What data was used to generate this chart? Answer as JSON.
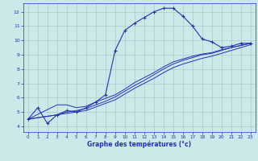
{
  "xlabel": "Graphe des températures (°c)",
  "background_color": "#cce8e8",
  "grid_color": "#aacccc",
  "line_color": "#2233bb",
  "xlim": [
    -0.5,
    23.5
  ],
  "ylim": [
    3.6,
    12.6
  ],
  "xticks": [
    0,
    1,
    2,
    3,
    4,
    5,
    6,
    7,
    8,
    9,
    10,
    11,
    12,
    13,
    14,
    15,
    16,
    17,
    18,
    19,
    20,
    21,
    22,
    23
  ],
  "yticks": [
    4,
    5,
    6,
    7,
    8,
    9,
    10,
    11,
    12
  ],
  "curve1_x": [
    0,
    1,
    2,
    3,
    4,
    5,
    6,
    7,
    8,
    9,
    10,
    11,
    12,
    13,
    14,
    15,
    16,
    17,
    18,
    19,
    20,
    21,
    22,
    23
  ],
  "curve1_y": [
    4.5,
    5.3,
    4.2,
    4.8,
    5.1,
    5.0,
    5.3,
    5.7,
    6.2,
    9.3,
    10.7,
    11.2,
    11.6,
    12.0,
    12.25,
    12.25,
    11.7,
    11.0,
    10.1,
    9.9,
    9.5,
    9.6,
    9.8,
    9.8
  ],
  "curve2_x": [
    0,
    3,
    4,
    5,
    6,
    7,
    8,
    9,
    10,
    11,
    12,
    13,
    14,
    15,
    16,
    17,
    18,
    19,
    20,
    21,
    22,
    23
  ],
  "curve2_y": [
    4.5,
    5.5,
    5.5,
    5.3,
    5.4,
    5.7,
    5.95,
    6.2,
    6.6,
    7.05,
    7.4,
    7.75,
    8.15,
    8.5,
    8.7,
    8.9,
    9.05,
    9.15,
    9.35,
    9.5,
    9.65,
    9.8
  ],
  "curve3_x": [
    0,
    3,
    4,
    5,
    6,
    7,
    8,
    9,
    10,
    11,
    12,
    13,
    14,
    15,
    16,
    17,
    18,
    19,
    20,
    21,
    22,
    23
  ],
  "curve3_y": [
    4.5,
    4.8,
    5.0,
    5.1,
    5.25,
    5.5,
    5.75,
    6.05,
    6.45,
    6.85,
    7.2,
    7.6,
    8.0,
    8.35,
    8.6,
    8.8,
    9.0,
    9.1,
    9.3,
    9.5,
    9.65,
    9.8
  ],
  "curve4_x": [
    0,
    3,
    4,
    5,
    6,
    7,
    8,
    9,
    10,
    11,
    12,
    13,
    14,
    15,
    16,
    17,
    18,
    19,
    20,
    21,
    22,
    23
  ],
  "curve4_y": [
    4.5,
    4.8,
    4.9,
    5.0,
    5.1,
    5.35,
    5.6,
    5.85,
    6.25,
    6.65,
    7.0,
    7.35,
    7.75,
    8.1,
    8.35,
    8.55,
    8.75,
    8.9,
    9.1,
    9.3,
    9.5,
    9.7
  ]
}
